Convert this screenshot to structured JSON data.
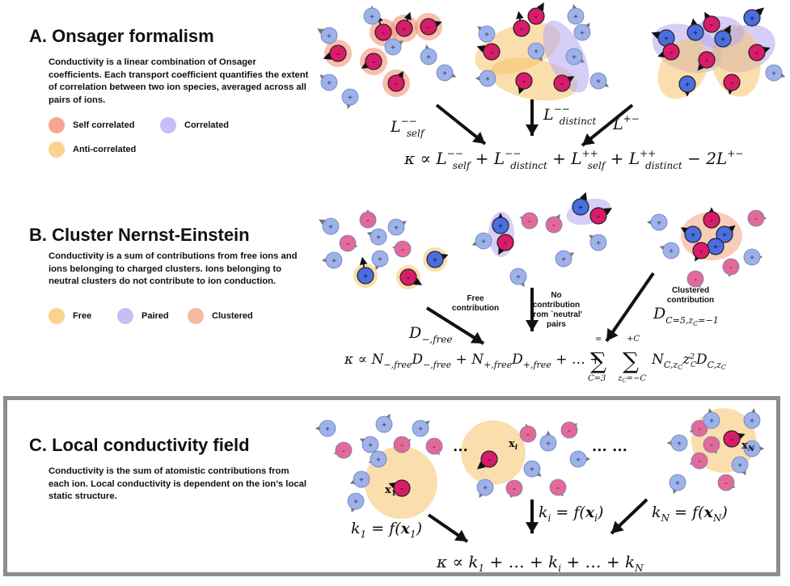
{
  "colors": {
    "self_correlated": "#f4896a",
    "correlated": "#b3a8f0",
    "anti_correlated": "#f8c36a",
    "free": "#f8c36a",
    "paired": "#b3a8f0",
    "clustered": "#f4a37e",
    "anion": "#e04a82",
    "cation": "#8fa8e8",
    "frame": "#8e8e8e"
  },
  "panel_a": {
    "title": "A.  Onsager formalism",
    "description": "Conductivity is a linear combination of Onsager coefficients. Each transport coefficient quantifies the extent of correlation between two ion species, averaged across all pairs of ions.",
    "legend": [
      {
        "label": "Self correlated",
        "color": "self_correlated"
      },
      {
        "label": "Correlated",
        "color": "correlated"
      },
      {
        "label": "Anti-correlated",
        "color": "anti_correlated"
      }
    ],
    "arrow_labels": [
      "L^{--}_{self}",
      "L^{--}_{distinct}",
      "L^{+-}"
    ],
    "equation": "κ ∝ L^{--}_{self} + L^{--}_{distinct} + L^{++}_{self} + L^{++}_{distinct} − 2L^{+-}"
  },
  "panel_b": {
    "title": "B.  Cluster Nernst-Einstein",
    "description": "Conductivity is a sum of contributions from free ions and ions belonging to charged clusters. Ions belonging to neutral clusters do not contribute to ion conduction.",
    "legend": [
      {
        "label": "Free",
        "color": "free"
      },
      {
        "label": "Paired",
        "color": "paired"
      },
      {
        "label": "Clustered",
        "color": "clustered"
      }
    ],
    "notes": [
      "Free contribution",
      "No contribution from `neutral' pairs",
      "Clustered contribution"
    ],
    "arrow_labels": [
      "D_{−,free}",
      "D_{C=5,z_C=−1}"
    ],
    "equation": "κ ∝ N_{−,free}D_{−,free} + N_{+,free}D_{+,free} + … + Σ_{C=3}^{∞} Σ_{z_C=−C}^{+C} N_{C,z_C} z_C^2 D_{C,z_C}"
  },
  "panel_c": {
    "title": "C.  Local conductivity field",
    "description": "Conductivity is the sum of atomistic contributions from each ion. Local conductivity is dependent on the ion's local static structure.",
    "ellipsis": [
      "...",
      "... ..."
    ],
    "position_labels": [
      "x1",
      "xi",
      "xN"
    ],
    "arrow_labels": [
      "k_1 = f(x_1)",
      "k_i = f(x_i)",
      "k_N = f(x_N)"
    ],
    "equation": "κ ∝ k_1 + … + k_i + … + k_N"
  },
  "ion_signs": {
    "anion": "-",
    "cation": "+"
  }
}
